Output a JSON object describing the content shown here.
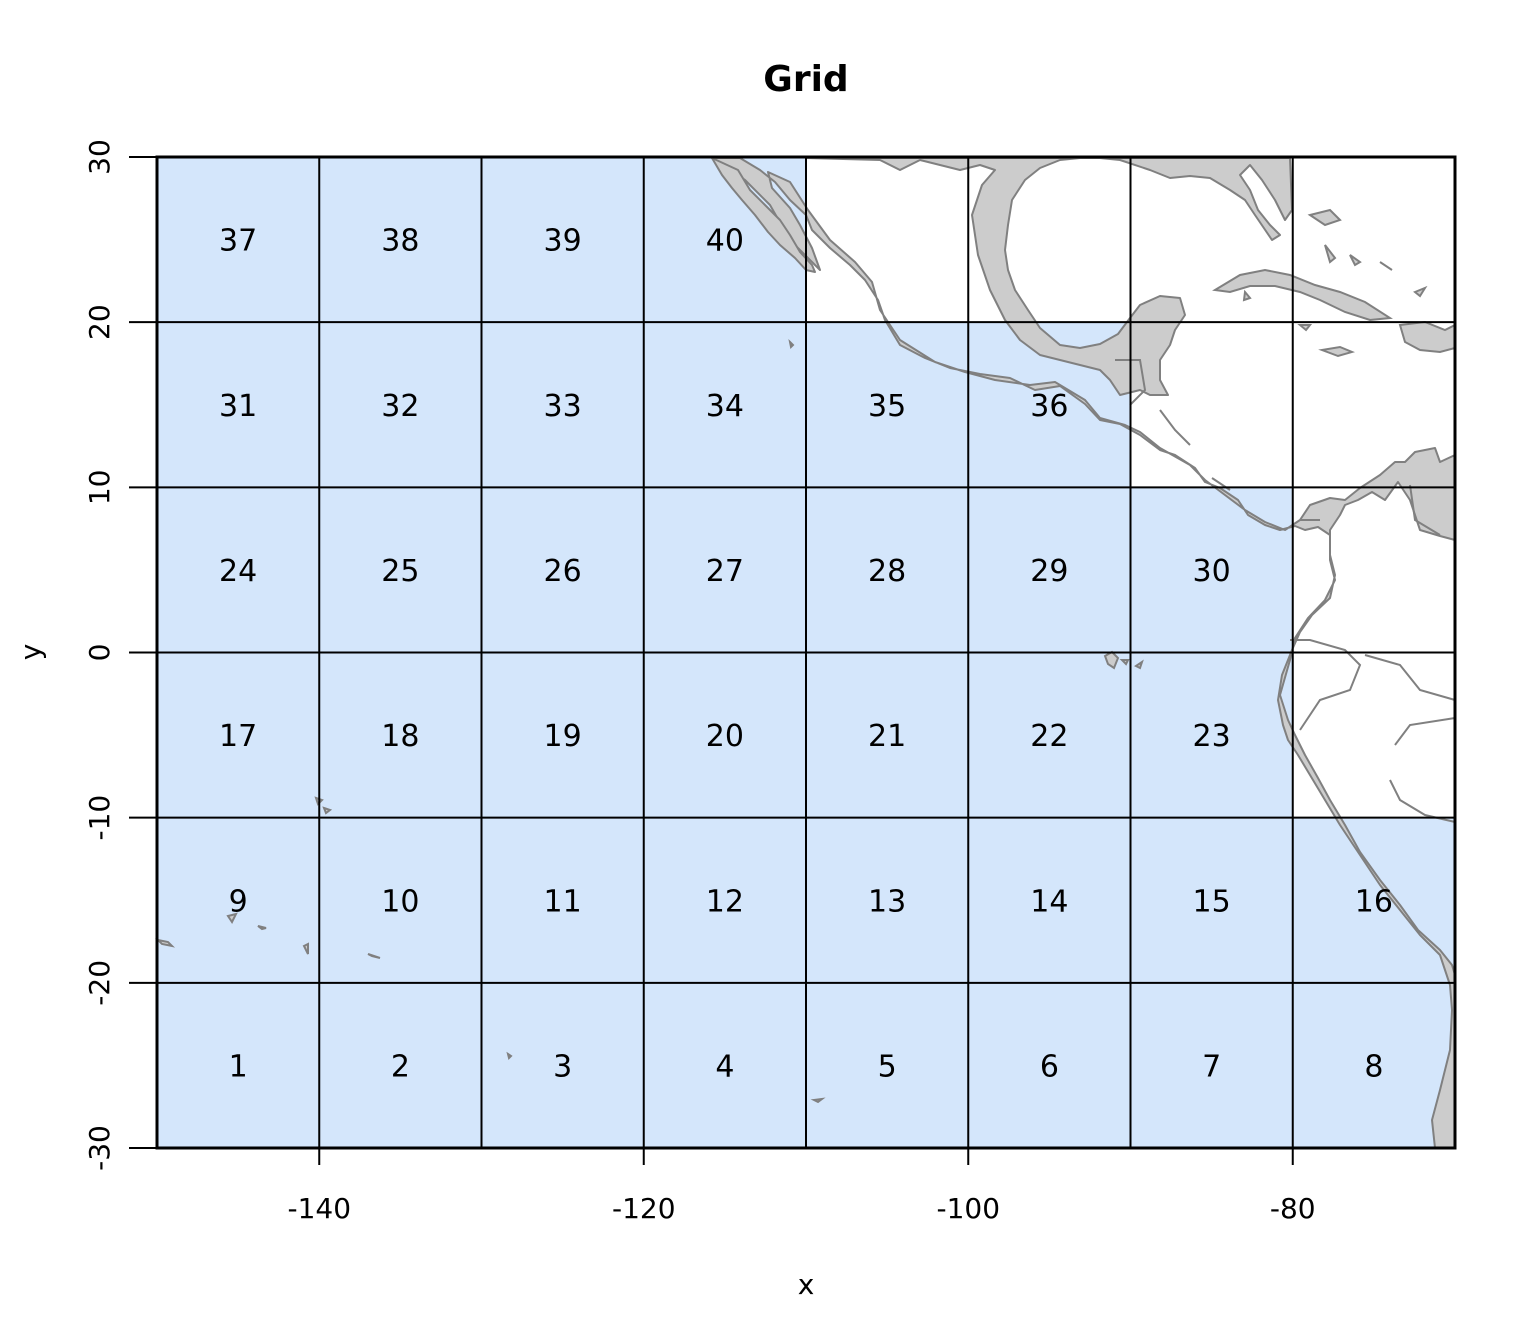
{
  "title": "Grid",
  "xlabel": "x",
  "ylabel": "y",
  "colors": {
    "ocean_cell": "#d4e6fb",
    "land": "#cccccc",
    "coast": "#808080",
    "grid_line": "#000000"
  },
  "x_ticks": [
    "-140",
    "-120",
    "-100",
    "-80"
  ],
  "y_ticks": [
    "-30",
    "-20",
    "-10",
    "0",
    "10",
    "20",
    "30"
  ],
  "chart_data": {
    "type": "map-grid",
    "xlim": [
      -150,
      -70
    ],
    "ylim": [
      -30,
      30
    ],
    "cell_size_deg": 10,
    "columns": [
      -150,
      -140,
      -130,
      -120,
      -110,
      -100,
      -90,
      -80,
      -70
    ],
    "rows": [
      -30,
      -20,
      -10,
      0,
      10,
      20,
      30
    ],
    "cells": [
      {
        "id": "1",
        "lon": -150,
        "lat": -30
      },
      {
        "id": "2",
        "lon": -140,
        "lat": -30
      },
      {
        "id": "3",
        "lon": -130,
        "lat": -30
      },
      {
        "id": "4",
        "lon": -120,
        "lat": -30
      },
      {
        "id": "5",
        "lon": -110,
        "lat": -30
      },
      {
        "id": "6",
        "lon": -100,
        "lat": -30
      },
      {
        "id": "7",
        "lon": -90,
        "lat": -30
      },
      {
        "id": "8",
        "lon": -80,
        "lat": -30
      },
      {
        "id": "9",
        "lon": -150,
        "lat": -20
      },
      {
        "id": "10",
        "lon": -140,
        "lat": -20
      },
      {
        "id": "11",
        "lon": -130,
        "lat": -20
      },
      {
        "id": "12",
        "lon": -120,
        "lat": -20
      },
      {
        "id": "13",
        "lon": -110,
        "lat": -20
      },
      {
        "id": "14",
        "lon": -100,
        "lat": -20
      },
      {
        "id": "15",
        "lon": -90,
        "lat": -20
      },
      {
        "id": "16",
        "lon": -80,
        "lat": -20
      },
      {
        "id": "17",
        "lon": -150,
        "lat": -10
      },
      {
        "id": "18",
        "lon": -140,
        "lat": -10
      },
      {
        "id": "19",
        "lon": -130,
        "lat": -10
      },
      {
        "id": "20",
        "lon": -120,
        "lat": -10
      },
      {
        "id": "21",
        "lon": -110,
        "lat": -10
      },
      {
        "id": "22",
        "lon": -100,
        "lat": -10
      },
      {
        "id": "23",
        "lon": -90,
        "lat": -10
      },
      {
        "id": "24",
        "lon": -150,
        "lat": 0
      },
      {
        "id": "25",
        "lon": -140,
        "lat": 0
      },
      {
        "id": "26",
        "lon": -130,
        "lat": 0
      },
      {
        "id": "27",
        "lon": -120,
        "lat": 0
      },
      {
        "id": "28",
        "lon": -110,
        "lat": 0
      },
      {
        "id": "29",
        "lon": -100,
        "lat": 0
      },
      {
        "id": "30",
        "lon": -90,
        "lat": 0
      },
      {
        "id": "31",
        "lon": -150,
        "lat": 10
      },
      {
        "id": "32",
        "lon": -140,
        "lat": 10
      },
      {
        "id": "33",
        "lon": -130,
        "lat": 10
      },
      {
        "id": "34",
        "lon": -120,
        "lat": 10
      },
      {
        "id": "35",
        "lon": -110,
        "lat": 10
      },
      {
        "id": "36",
        "lon": -100,
        "lat": 10
      },
      {
        "id": "37",
        "lon": -150,
        "lat": 20
      },
      {
        "id": "38",
        "lon": -140,
        "lat": 20
      },
      {
        "id": "39",
        "lon": -130,
        "lat": 20
      },
      {
        "id": "40",
        "lon": -120,
        "lat": 20
      }
    ],
    "grid": true
  }
}
